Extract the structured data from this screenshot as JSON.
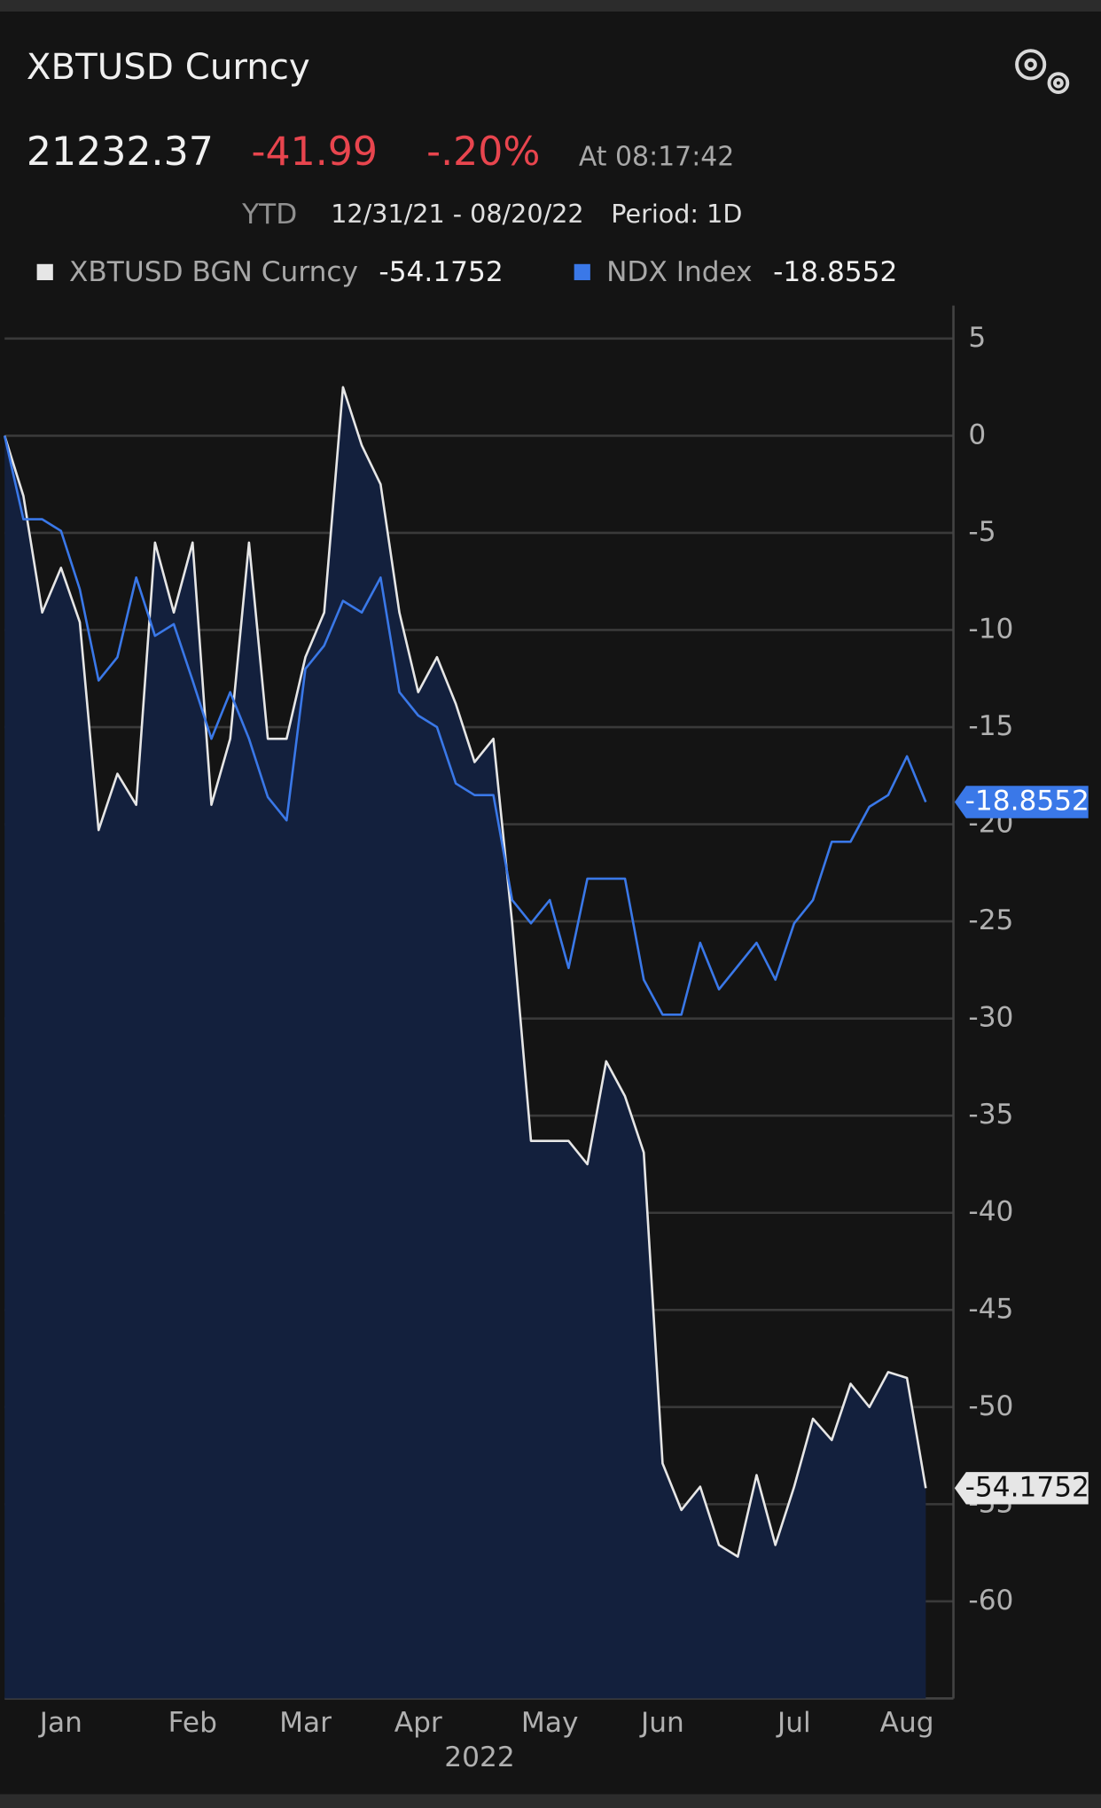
{
  "header": {
    "title": "XBTUSD Curncy",
    "price": "21232.37",
    "change": "-41.99",
    "change_pct": "-.20%",
    "time": "At 08:17:42",
    "range_label": "YTD",
    "range": "12/31/21 - 08/20/22",
    "period": "Period: 1D"
  },
  "chart_data": {
    "type": "area-line",
    "xlabel": "2022",
    "categories": [
      null,
      null,
      null,
      "Jan",
      null,
      null,
      null,
      null,
      null,
      null,
      "Feb",
      null,
      null,
      null,
      null,
      null,
      "Mar",
      null,
      null,
      null,
      null,
      null,
      "Apr",
      null,
      null,
      null,
      null,
      null,
      null,
      "May",
      null,
      null,
      null,
      null,
      null,
      "Jun",
      null,
      null,
      null,
      null,
      null,
      null,
      "Jul",
      null,
      null,
      null,
      null,
      null,
      "Aug",
      null
    ],
    "series": [
      {
        "name": "XBTUSD BGN Curncy",
        "color": "#e6e6e6",
        "fill": "#13203d",
        "values": [
          0,
          -3.1,
          -9.1,
          -6.8,
          -9.6,
          -20.3,
          -17.4,
          -19.0,
          -5.5,
          -9.1,
          -5.5,
          -19.0,
          -15.6,
          -5.5,
          -15.6,
          -15.6,
          -11.4,
          -9.1,
          2.5,
          -0.5,
          -2.5,
          -9.1,
          -13.2,
          -11.4,
          -13.8,
          -16.8,
          -15.6,
          -25.1,
          -36.3,
          -36.3,
          -36.3,
          -37.5,
          -32.2,
          -34.0,
          -36.9,
          -52.9,
          -55.3,
          -54.1,
          -57.1,
          -57.7,
          -53.5,
          -57.1,
          -54.1,
          -50.6,
          -51.7,
          -48.8,
          -50.0,
          -48.2,
          -48.5,
          -54.1752
        ]
      },
      {
        "name": "NDX Index",
        "color": "#3a78e8",
        "values": [
          0,
          -4.3,
          -4.3,
          -4.9,
          -7.9,
          -12.6,
          -11.4,
          -7.3,
          -10.3,
          -9.7,
          -12.6,
          -15.6,
          -13.2,
          -15.6,
          -18.6,
          -19.8,
          -12.0,
          -10.8,
          -8.5,
          -9.1,
          -7.3,
          -13.2,
          -14.4,
          -15.0,
          -17.9,
          -18.5,
          -18.5,
          -23.9,
          -25.1,
          -23.9,
          -27.4,
          -22.8,
          -22.8,
          -22.8,
          -28.0,
          -29.8,
          -29.8,
          -26.1,
          -28.5,
          -27.3,
          -26.1,
          -28.0,
          -25.1,
          -23.9,
          -20.9,
          -20.9,
          -19.1,
          -18.5,
          -16.5,
          -18.8552
        ]
      }
    ],
    "ylim": [
      -65,
      6.7
    ],
    "yticks": [
      5,
      0,
      -5,
      -10,
      -15,
      -20,
      -25,
      -30,
      -35,
      -40,
      -45,
      -50,
      -55,
      -60
    ],
    "grid": true
  }
}
